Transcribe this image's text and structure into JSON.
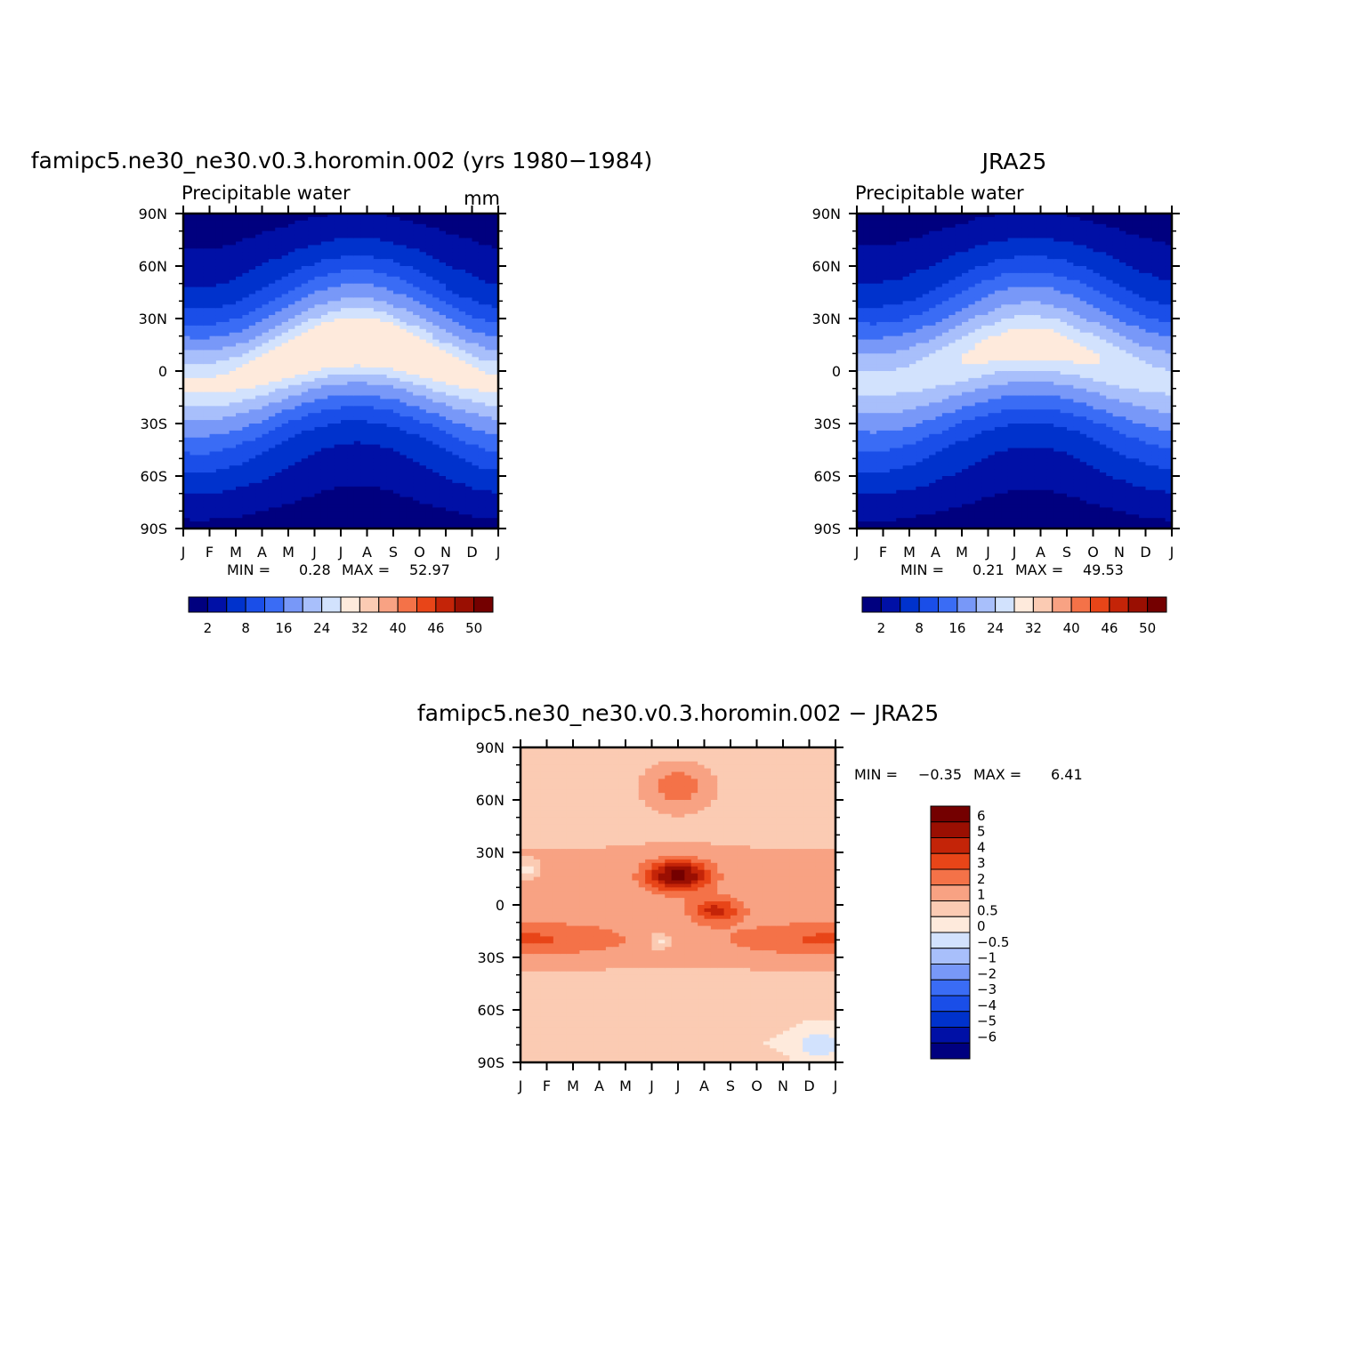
{
  "colors": {
    "blue_red_16": [
      "#00007f",
      "#0010a6",
      "#0032cc",
      "#1a4ee8",
      "#3a6cf5",
      "#7898f8",
      "#a8bffb",
      "#d2e2fd",
      "#feeadc",
      "#fbcbb3",
      "#f8a283",
      "#f47248",
      "#e84518",
      "#c42408",
      "#9a0f02",
      "#740000"
    ]
  },
  "chart_data": [
    {
      "id": "model",
      "type": "heatmap",
      "title": "famipc5.ne30_ne30.v0.3.horomin.002 (yrs 1980−1984)",
      "left_label": "Precipitable water",
      "units": "mm",
      "x_labels": [
        "J",
        "F",
        "M",
        "A",
        "M",
        "J",
        "J",
        "A",
        "S",
        "O",
        "N",
        "D",
        "J"
      ],
      "y_labels": [
        "90N",
        "60N",
        "30N",
        "0",
        "30S",
        "60S",
        "90S"
      ],
      "ylim": [
        -90,
        90
      ],
      "stats": {
        "min_label": "MIN =",
        "min": "0.28",
        "max_label": "MAX =",
        "max": "52.97"
      },
      "colorbar": {
        "orientation": "horizontal",
        "levels": [
          2,
          8,
          16,
          24,
          32,
          40,
          46,
          50
        ],
        "labels": [
          "2",
          "8",
          "16",
          "24",
          "32",
          "40",
          "46",
          "50"
        ]
      },
      "field": {
        "equator_peak": 53.0,
        "peak_lat_amplitude": 12,
        "tropical_width": 28,
        "polar_base": 1.2,
        "mean_lat_shift": 4
      }
    },
    {
      "id": "obs",
      "type": "heatmap",
      "title": "JRA25",
      "left_label": "Precipitable water",
      "units": "",
      "x_labels": [
        "J",
        "F",
        "M",
        "A",
        "M",
        "J",
        "J",
        "A",
        "S",
        "O",
        "N",
        "D",
        "J"
      ],
      "y_labels": [
        "90N",
        "60N",
        "30N",
        "0",
        "30S",
        "60S",
        "90S"
      ],
      "ylim": [
        -90,
        90
      ],
      "stats": {
        "min_label": "MIN =",
        "min": "0.21",
        "max_label": "MAX =",
        "max": "49.53"
      },
      "colorbar": {
        "orientation": "horizontal",
        "levels": [
          2,
          8,
          16,
          24,
          32,
          40,
          46,
          50
        ],
        "labels": [
          "2",
          "8",
          "16",
          "24",
          "32",
          "40",
          "46",
          "50"
        ]
      },
      "field": {
        "equator_peak": 49.5,
        "peak_lat_amplitude": 11,
        "tropical_width": 29,
        "polar_base": 1.0,
        "mean_lat_shift": 4
      }
    },
    {
      "id": "diff",
      "type": "heatmap",
      "title": "famipc5.ne30_ne30.v0.3.horomin.002 − JRA25",
      "left_label": "",
      "units": "",
      "x_labels": [
        "J",
        "F",
        "M",
        "A",
        "M",
        "J",
        "J",
        "A",
        "S",
        "O",
        "N",
        "D",
        "J"
      ],
      "y_labels": [
        "90N",
        "60N",
        "30N",
        "0",
        "30S",
        "60S",
        "90S"
      ],
      "ylim": [
        -90,
        90
      ],
      "stats": {
        "min_label": "MIN =",
        "min": "−0.35",
        "max_label": "MAX =",
        "max": "6.41"
      },
      "colorbar": {
        "orientation": "vertical",
        "levels": [
          -6,
          -5,
          -4,
          -3,
          -2,
          -1,
          -0.5,
          0,
          0.5,
          1,
          2,
          3,
          4,
          5,
          6
        ],
        "labels": [
          "−6",
          "−5",
          "−4",
          "−3",
          "−2",
          "−1",
          "−0.5",
          "0",
          "0.5",
          "1",
          "2",
          "3",
          "4",
          "5",
          "6"
        ]
      }
    }
  ]
}
